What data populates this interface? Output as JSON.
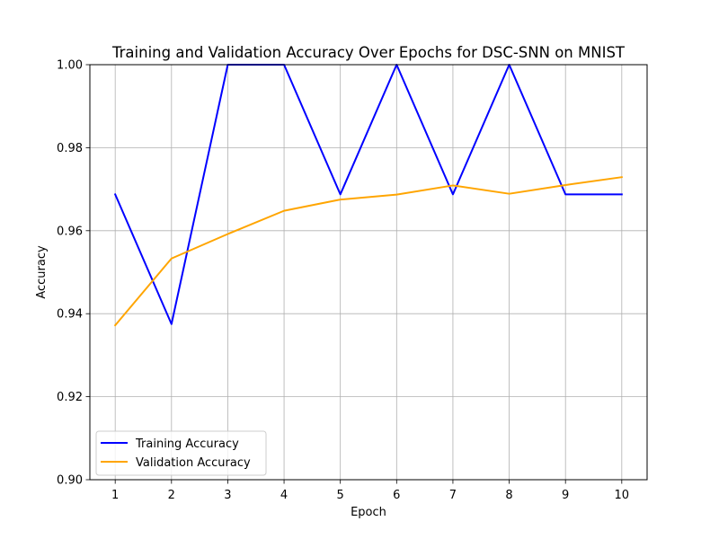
{
  "chart_data": {
    "type": "line",
    "title": "Training and Validation Accuracy Over Epochs for DSC-SNN on MNIST",
    "xlabel": "Epoch",
    "ylabel": "Accuracy",
    "x": [
      1,
      2,
      3,
      4,
      5,
      6,
      7,
      8,
      9,
      10
    ],
    "xlim": [
      0.55,
      10.45
    ],
    "ylim": [
      0.9,
      1.0
    ],
    "xticks": [
      "1",
      "2",
      "3",
      "4",
      "5",
      "6",
      "7",
      "8",
      "9",
      "10"
    ],
    "yticks": [
      "0.90",
      "0.92",
      "0.94",
      "0.96",
      "0.98",
      "1.00"
    ],
    "grid": true,
    "legend_position": "lower-left",
    "series": [
      {
        "name": "Training Accuracy",
        "color": "#0000ff",
        "values": [
          0.96875,
          0.9375,
          1.0,
          1.0,
          0.96875,
          1.0,
          0.96875,
          1.0,
          0.96875,
          0.96875
        ]
      },
      {
        "name": "Validation Accuracy",
        "color": "#ffa500",
        "values": [
          0.9372,
          0.9533,
          0.9592,
          0.9648,
          0.9675,
          0.9687,
          0.9709,
          0.9689,
          0.971,
          0.9729
        ]
      }
    ]
  }
}
